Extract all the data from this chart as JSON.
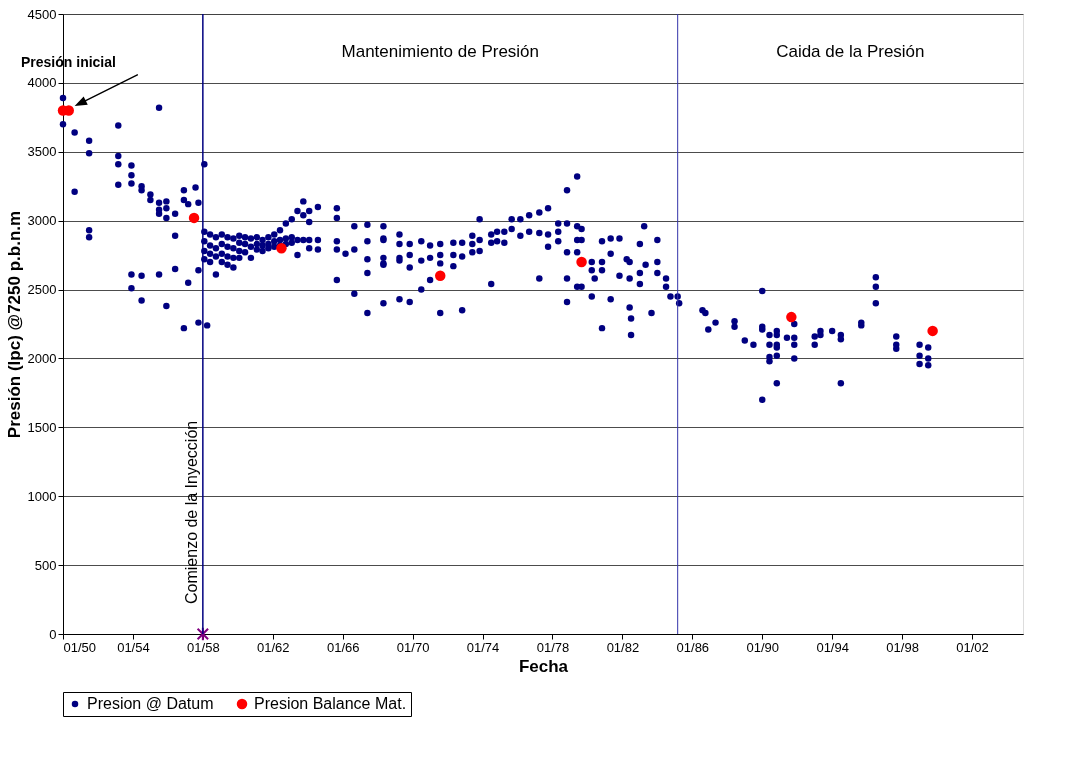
{
  "chart_data": {
    "type": "scatter",
    "xlabel": "Fecha",
    "ylabel": "Presión (lpc) @7250 p.b.n.m",
    "xlim": [
      "1950-01",
      "2004-12"
    ],
    "ylim": [
      0,
      4500
    ],
    "xticks": [
      {
        "value": "1950-01",
        "label": "01/50"
      },
      {
        "value": "1954-01",
        "label": "01/54"
      },
      {
        "value": "1958-01",
        "label": "01/58"
      },
      {
        "value": "1962-01",
        "label": "01/62"
      },
      {
        "value": "1966-01",
        "label": "01/66"
      },
      {
        "value": "1970-01",
        "label": "01/70"
      },
      {
        "value": "1974-01",
        "label": "01/74"
      },
      {
        "value": "1978-01",
        "label": "01/78"
      },
      {
        "value": "1982-01",
        "label": "01/82"
      },
      {
        "value": "1986-01",
        "label": "01/86"
      },
      {
        "value": "1990-01",
        "label": "01/90"
      },
      {
        "value": "1994-01",
        "label": "01/94"
      },
      {
        "value": "1998-01",
        "label": "01/98"
      },
      {
        "value": "2002-01",
        "label": "01/02"
      }
    ],
    "yticks": [
      0,
      500,
      1000,
      1500,
      2000,
      2500,
      3000,
      3500,
      4000,
      4500
    ],
    "grid": "y",
    "legend": "bottom",
    "series": [
      {
        "name": "Presion @ Datum",
        "color": "#000080",
        "marker": "circle",
        "x": [
          "1950-01",
          "1950-01",
          "1950-09",
          "1950-09",
          "1951-07",
          "1951-07",
          "1951-07",
          "1951-07",
          "1953-03",
          "1953-03",
          "1953-03",
          "1953-03",
          "1953-12",
          "1953-12",
          "1953-12",
          "1953-12",
          "1953-12",
          "1954-07",
          "1954-07",
          "1954-07",
          "1954-07",
          "1955-01",
          "1955-01",
          "1955-07",
          "1955-07",
          "1955-07",
          "1955-07",
          "1955-07",
          "1955-12",
          "1955-12",
          "1955-12",
          "1955-12",
          "1956-06",
          "1956-06",
          "1956-06",
          "1956-12",
          "1956-12",
          "1956-12",
          "1957-03",
          "1957-03",
          "1957-08",
          "1957-10",
          "1957-10",
          "1957-10",
          "1958-02",
          "1958-04",
          "1958-02",
          "1958-02",
          "1958-02",
          "1958-02",
          "1958-06",
          "1958-06",
          "1958-06",
          "1958-06",
          "1958-10",
          "1958-10",
          "1958-10",
          "1958-10",
          "1959-02",
          "1959-02",
          "1959-02",
          "1959-02",
          "1959-06",
          "1959-06",
          "1959-06",
          "1959-06",
          "1959-10",
          "1959-10",
          "1959-10",
          "1959-10",
          "1960-02",
          "1960-02",
          "1960-02",
          "1960-02",
          "1960-06",
          "1960-06",
          "1960-06",
          "1960-10",
          "1960-10",
          "1960-10",
          "1961-02",
          "1961-02",
          "1961-02",
          "1961-06",
          "1961-06",
          "1961-06",
          "1961-10",
          "1961-10",
          "1961-10",
          "1962-02",
          "1962-02",
          "1962-02",
          "1962-06",
          "1962-06",
          "1962-06",
          "1962-10",
          "1962-10",
          "1962-10",
          "1963-02",
          "1963-02",
          "1963-02",
          "1963-06",
          "1963-06",
          "1963-06",
          "1963-10",
          "1963-10",
          "1963-10",
          "1964-02",
          "1964-02",
          "1964-02",
          "1964-02",
          "1964-08",
          "1964-08",
          "1964-08",
          "1965-09",
          "1965-09",
          "1965-09",
          "1965-09",
          "1965-09",
          "1966-03",
          "1966-09",
          "1966-09",
          "1966-09",
          "1967-06",
          "1967-06",
          "1967-06",
          "1967-06",
          "1967-06",
          "1968-05",
          "1968-05",
          "1968-05",
          "1968-05",
          "1968-05",
          "1968-05",
          "1968-05",
          "1969-04",
          "1969-04",
          "1969-04",
          "1969-04",
          "1969-04",
          "1969-11",
          "1969-11",
          "1969-11",
          "1969-11",
          "1970-07",
          "1970-07",
          "1970-07",
          "1971-01",
          "1971-01",
          "1971-01",
          "1971-08",
          "1971-08",
          "1971-08",
          "1971-08",
          "1972-05",
          "1972-05",
          "1972-05",
          "1972-11",
          "1972-11",
          "1972-11",
          "1973-06",
          "1973-06",
          "1973-06",
          "1973-11",
          "1973-11",
          "1973-11",
          "1974-07",
          "1974-07",
          "1974-07",
          "1974-11",
          "1974-11",
          "1975-04",
          "1975-04",
          "1975-09",
          "1975-09",
          "1976-03",
          "1976-03",
          "1976-09",
          "1976-09",
          "1977-04",
          "1977-04",
          "1977-04",
          "1977-10",
          "1977-10",
          "1977-10",
          "1978-05",
          "1978-05",
          "1978-05",
          "1978-11",
          "1978-11",
          "1978-11",
          "1978-11",
          "1978-11",
          "1979-06",
          "1979-06",
          "1979-06",
          "1979-06",
          "1979-06",
          "1979-09",
          "1979-09",
          "1979-09",
          "1980-04",
          "1980-04",
          "1980-04",
          "1980-06",
          "1980-11",
          "1980-11",
          "1980-11",
          "1980-11",
          "1981-05",
          "1981-05",
          "1981-05",
          "1981-11",
          "1981-11",
          "1982-04",
          "1982-06",
          "1982-06",
          "1982-06",
          "1982-07",
          "1982-07",
          "1983-01",
          "1983-01",
          "1983-01",
          "1983-04",
          "1983-05",
          "1983-09",
          "1984-01",
          "1984-01",
          "1984-01",
          "1984-07",
          "1984-07",
          "1984-10",
          "1985-03",
          "1985-04",
          "1986-08",
          "1986-10",
          "1986-12",
          "1987-05",
          "1988-06",
          "1988-06",
          "1989-01",
          "1989-07",
          "1990-01",
          "1990-01",
          "1990-01",
          "1990-01",
          "1990-06",
          "1990-06",
          "1990-06",
          "1990-06",
          "1990-11",
          "1990-11",
          "1990-11",
          "1990-11",
          "1990-11",
          "1990-11",
          "1991-11",
          "1991-06",
          "1991-11",
          "1991-11",
          "1991-11",
          "1993-01",
          "1993-01",
          "1993-05",
          "1993-05",
          "1994-01",
          "1994-07",
          "1994-07",
          "1994-07",
          "1995-09",
          "1995-09",
          "1996-07",
          "1996-07",
          "1996-07",
          "1997-09",
          "1997-09",
          "1997-09",
          "1999-01",
          "1999-01",
          "1999-01",
          "1999-07",
          "1999-07",
          "1999-07"
        ],
        "values": [
          3890,
          3700,
          3640,
          3210,
          3580,
          3490,
          2930,
          2880,
          3690,
          3470,
          3410,
          3260,
          3400,
          3330,
          3270,
          2610,
          2510,
          3250,
          3220,
          2600,
          2420,
          3190,
          3150,
          3820,
          3130,
          3080,
          3050,
          2610,
          3140,
          3090,
          3020,
          2380,
          3050,
          2890,
          2650,
          3220,
          3150,
          2220,
          3120,
          2550,
          3240,
          3130,
          2640,
          2260,
          3410,
          2240,
          2920,
          2850,
          2780,
          2720,
          2900,
          2820,
          2760,
          2700,
          2880,
          2800,
          2740,
          2610,
          2900,
          2830,
          2760,
          2700,
          2880,
          2810,
          2740,
          2680,
          2870,
          2800,
          2730,
          2660,
          2890,
          2840,
          2780,
          2730,
          2880,
          2830,
          2770,
          2870,
          2810,
          2730,
          2880,
          2830,
          2790,
          2860,
          2820,
          2780,
          2880,
          2830,
          2800,
          2900,
          2850,
          2810,
          2930,
          2860,
          2820,
          2980,
          2870,
          2830,
          3010,
          2880,
          2840,
          3070,
          2860,
          2750,
          3140,
          3040,
          2860,
          3070,
          2990,
          2860,
          2800,
          3100,
          2860,
          2790,
          3090,
          3020,
          2850,
          2790,
          2570,
          2760,
          2960,
          2790,
          2470,
          2970,
          2850,
          2720,
          2620,
          2330,
          2870,
          2690,
          2400,
          2960,
          2860,
          2730,
          2680,
          2900,
          2830,
          2730,
          2710,
          2430,
          2830,
          2750,
          2660,
          2410,
          2850,
          2710,
          2500,
          2820,
          2730,
          2570,
          2830,
          2750,
          2690,
          2330,
          2840,
          2750,
          2670,
          2840,
          2740,
          2350,
          2890,
          2830,
          2770,
          3010,
          2860,
          2780,
          2900,
          2840,
          2540,
          2920,
          2850,
          2920,
          2840,
          3010,
          2940,
          3010,
          2890,
          3040,
          2920,
          3060,
          2910,
          2580,
          3090,
          2900,
          2810,
          2980,
          2920,
          2850,
          3220,
          2980,
          2770,
          2580,
          2410,
          3320,
          2960,
          2860,
          2770,
          2520,
          2940,
          2860,
          2520,
          2700,
          2640,
          2450,
          2580,
          2700,
          2640,
          2220,
          2850,
          2870,
          2760,
          2430,
          2870,
          2600,
          2720,
          2370,
          2700,
          2580,
          2290,
          2170,
          2830,
          2620,
          2540,
          2960,
          2680,
          2330,
          2860,
          2700,
          2620,
          2580,
          2520,
          2450,
          2450,
          2400,
          2350,
          2330,
          2210,
          2260,
          2270,
          2230,
          2130,
          2100,
          2230,
          2210,
          1700,
          2490,
          2170,
          2100,
          2010,
          1980,
          2200,
          2100,
          2080,
          2020,
          1820,
          2170,
          2250,
          2150,
          2100,
          2000,
          2150,
          2160,
          2100,
          2200,
          2170,
          2200,
          2170,
          2140,
          1820,
          2260,
          2240,
          2590,
          2520,
          2400,
          2160,
          2100,
          2070,
          2100,
          2020,
          1960,
          2080,
          2000,
          1950
        ]
      },
      {
        "name": "Presion Balance Mat.",
        "color": "#ff0000",
        "marker": "circle",
        "x": [
          "1950-01",
          "1950-05",
          "1957-07",
          "1962-07",
          "1971-08",
          "1979-09",
          "1991-09",
          "1999-10"
        ],
        "values": [
          3800,
          3800,
          3020,
          2800,
          2600,
          2700,
          2300,
          2200
        ]
      },
      {
        "color": "#800080",
        "marker": "cross",
        "x": [
          "1958-01"
        ],
        "values": [
          0
        ]
      }
    ],
    "ref_lines": [
      {
        "axis": "x",
        "value": "1958-01",
        "label": "Comienzo de la Inyección",
        "color": "#000080"
      },
      {
        "axis": "x",
        "value": "1985-03",
        "color": "#3333aa"
      }
    ],
    "annotations": [
      {
        "text": "Presión inicial",
        "x": "1950-01",
        "y": 3800
      },
      "Mantenimiento de Presión",
      "Caida de la Presión"
    ]
  }
}
